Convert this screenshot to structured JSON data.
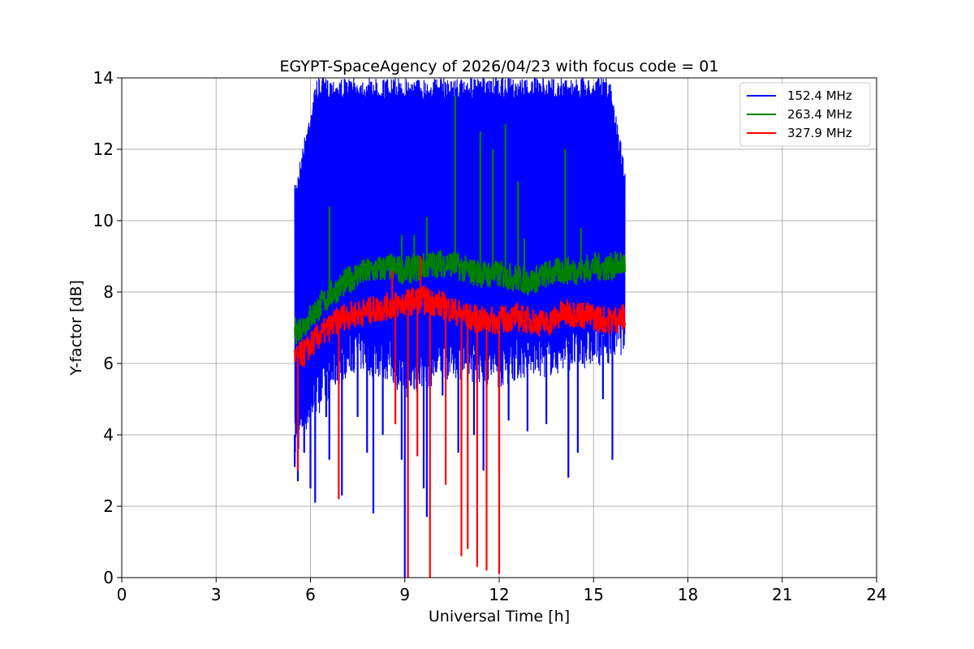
{
  "chart_data": {
    "type": "line",
    "title": "EGYPT-SpaceAgency of 2026/04/23 with focus code = 01",
    "xlabel": "Universal Time [h]",
    "ylabel": "Y-factor [dB]",
    "xlim": [
      0,
      24
    ],
    "ylim": [
      0,
      14
    ],
    "xticks": [
      0,
      3,
      6,
      9,
      12,
      15,
      18,
      21,
      24
    ],
    "yticks": [
      0,
      2,
      4,
      6,
      8,
      10,
      12,
      14
    ],
    "grid": true,
    "legend_position": "top-right",
    "series": [
      {
        "name": "152.4 MHz",
        "color": "#0000ff",
        "band": {
          "x": [
            5.5,
            5.8,
            6.2,
            6.6,
            7.0,
            7.5,
            8.0,
            8.5,
            9.0,
            9.5,
            10.0,
            10.5,
            11.0,
            11.5,
            12.0,
            12.5,
            13.0,
            13.5,
            14.0,
            14.5,
            15.0,
            15.5,
            16.0
          ],
          "low": [
            3.2,
            4.0,
            4.5,
            5.0,
            5.5,
            5.8,
            5.6,
            5.5,
            5.0,
            5.2,
            5.4,
            5.6,
            5.5,
            5.4,
            5.3,
            5.5,
            5.6,
            5.6,
            5.7,
            5.8,
            5.9,
            6.0,
            6.3
          ],
          "high": [
            11.0,
            12.3,
            14.0,
            14.0,
            14.0,
            14.0,
            14.0,
            14.0,
            14.0,
            14.0,
            14.0,
            14.0,
            14.0,
            14.0,
            14.0,
            14.0,
            14.0,
            14.0,
            14.0,
            14.0,
            14.0,
            14.0,
            11.6
          ]
        },
        "spikes": [
          {
            "x": 5.5,
            "y": 3.1
          },
          {
            "x": 5.6,
            "y": 2.7
          },
          {
            "x": 5.8,
            "y": 3.5
          },
          {
            "x": 6.0,
            "y": 2.5
          },
          {
            "x": 6.15,
            "y": 2.1
          },
          {
            "x": 6.5,
            "y": 4.5
          },
          {
            "x": 6.6,
            "y": 3.3
          },
          {
            "x": 7.0,
            "y": 2.3
          },
          {
            "x": 7.5,
            "y": 4.5
          },
          {
            "x": 7.8,
            "y": 3.5
          },
          {
            "x": 8.0,
            "y": 1.8
          },
          {
            "x": 8.3,
            "y": 4.0
          },
          {
            "x": 8.9,
            "y": 3.3
          },
          {
            "x": 9.0,
            "y": 0.0
          },
          {
            "x": 9.6,
            "y": 2.5
          },
          {
            "x": 9.7,
            "y": 1.7
          },
          {
            "x": 10.2,
            "y": 5.1
          },
          {
            "x": 10.7,
            "y": 3.5
          },
          {
            "x": 11.2,
            "y": 4.0
          },
          {
            "x": 11.5,
            "y": 3.0
          },
          {
            "x": 12.0,
            "y": 3.0
          },
          {
            "x": 12.3,
            "y": 4.4
          },
          {
            "x": 12.9,
            "y": 4.1
          },
          {
            "x": 13.5,
            "y": 4.3
          },
          {
            "x": 14.2,
            "y": 2.8
          },
          {
            "x": 14.5,
            "y": 3.5
          },
          {
            "x": 15.3,
            "y": 5.0
          },
          {
            "x": 15.6,
            "y": 3.3
          }
        ]
      },
      {
        "name": "263.4 MHz",
        "color": "#008000",
        "x": [
          5.5,
          5.8,
          6.2,
          6.6,
          7.0,
          7.5,
          8.0,
          8.5,
          9.0,
          9.5,
          10.0,
          10.5,
          11.0,
          11.5,
          12.0,
          12.5,
          13.0,
          13.5,
          14.0,
          14.5,
          15.0,
          15.5,
          16.0
        ],
        "y": [
          6.9,
          7.1,
          7.5,
          7.9,
          8.2,
          8.5,
          8.6,
          8.7,
          8.6,
          8.7,
          8.8,
          8.8,
          8.6,
          8.5,
          8.5,
          8.4,
          8.3,
          8.5,
          8.6,
          8.6,
          8.7,
          8.7,
          8.8
        ],
        "spikes": [
          {
            "x": 6.6,
            "y": 10.4
          },
          {
            "x": 8.9,
            "y": 9.6
          },
          {
            "x": 9.3,
            "y": 9.6
          },
          {
            "x": 9.7,
            "y": 10.1
          },
          {
            "x": 10.6,
            "y": 13.5
          },
          {
            "x": 11.4,
            "y": 12.5
          },
          {
            "x": 11.8,
            "y": 12.0
          },
          {
            "x": 12.2,
            "y": 12.7
          },
          {
            "x": 12.6,
            "y": 11.1
          },
          {
            "x": 12.8,
            "y": 9.5
          },
          {
            "x": 14.1,
            "y": 12.0
          },
          {
            "x": 14.6,
            "y": 9.8
          }
        ]
      },
      {
        "name": "327.9 MHz",
        "color": "#ff0000",
        "x": [
          5.5,
          5.8,
          6.2,
          6.6,
          7.0,
          7.5,
          8.0,
          8.5,
          9.0,
          9.5,
          10.0,
          10.5,
          11.0,
          11.5,
          12.0,
          12.5,
          13.0,
          13.5,
          14.0,
          14.5,
          15.0,
          15.5,
          16.0
        ],
        "y": [
          6.1,
          6.3,
          6.7,
          7.0,
          7.3,
          7.4,
          7.5,
          7.6,
          7.7,
          7.8,
          7.7,
          7.5,
          7.3,
          7.2,
          7.2,
          7.3,
          7.2,
          7.1,
          7.4,
          7.4,
          7.3,
          7.2,
          7.3
        ],
        "spikes": [
          {
            "x": 5.6,
            "y": 3.0
          },
          {
            "x": 6.9,
            "y": 2.2
          },
          {
            "x": 8.7,
            "y": 4.3
          },
          {
            "x": 9.1,
            "y": 0.0
          },
          {
            "x": 9.4,
            "y": 3.4
          },
          {
            "x": 9.8,
            "y": 0.0
          },
          {
            "x": 10.3,
            "y": 2.6
          },
          {
            "x": 10.8,
            "y": 0.6
          },
          {
            "x": 11.0,
            "y": 0.8
          },
          {
            "x": 11.3,
            "y": 0.3
          },
          {
            "x": 11.6,
            "y": 0.2
          },
          {
            "x": 12.0,
            "y": 0.1
          },
          {
            "x": 9.5,
            "y": 9.0
          },
          {
            "x": 8.6,
            "y": 8.6
          }
        ]
      }
    ]
  }
}
